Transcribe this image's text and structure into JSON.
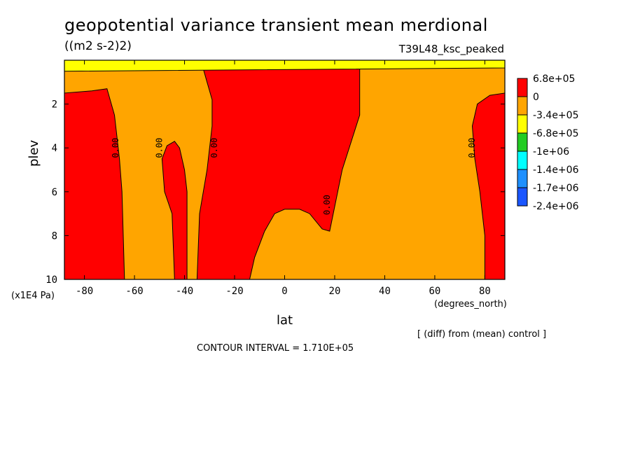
{
  "chart_data": {
    "type": "heatmap",
    "title": "geopotential variance transient mean merdional",
    "units": "((m2 s-2)2)",
    "experiment": "T39L48_ksc_peaked",
    "xlabel": "lat",
    "xunit": "(degrees_north)",
    "ylabel": "plev",
    "yunit": "(x1E4 Pa)",
    "xlim": [
      -88,
      88
    ],
    "ylim": [
      0,
      10
    ],
    "y_inverted": true,
    "xticks": [
      "-80",
      "-60",
      "-40",
      "-20",
      "0",
      "20",
      "40",
      "60",
      "80"
    ],
    "xtick_values": [
      -80,
      -60,
      -40,
      -20,
      0,
      20,
      40,
      60,
      80
    ],
    "yticks": [
      "2",
      "4",
      "6",
      "8",
      "10"
    ],
    "ytick_values": [
      2,
      4,
      6,
      8,
      10
    ],
    "contour_label": "0.00",
    "contour_interval": "CONTOUR INTERVAL = 1.710E+05",
    "note": "[ (diff) from (mean) control ]",
    "legend": {
      "placement": "right",
      "levels": [
        {
          "label": "6.8e+05",
          "color": "#ff0000"
        },
        {
          "label": "0",
          "color": "#ffa500"
        },
        {
          "label": "-3.4e+05",
          "color": "#ffff00"
        },
        {
          "label": "-6.8e+05",
          "color": "#22cc22"
        },
        {
          "label": "-1e+06",
          "color": "#00ffff"
        },
        {
          "label": "-1.4e+06",
          "color": "#1e90ff"
        },
        {
          "label": "-1.7e+06",
          "color": "#1a56ff"
        },
        {
          "label": "-2.4e+06",
          "color": "#ffffff"
        }
      ]
    },
    "regions": [
      {
        "name": "red-south-edge",
        "level": "6.8e+05",
        "points": [
          [
            -88,
            10
          ],
          [
            -88,
            1.5
          ],
          [
            -77,
            1.4
          ],
          [
            -71,
            1.3
          ],
          [
            -68,
            2.5
          ],
          [
            -66,
            4.5
          ],
          [
            -65,
            6
          ],
          [
            -64,
            10
          ]
        ]
      },
      {
        "name": "red-south-mid",
        "level": "6.8e+05",
        "points": [
          [
            -39,
            10
          ],
          [
            -39,
            6
          ],
          [
            -40,
            5
          ],
          [
            -42,
            4
          ],
          [
            -44,
            3.7
          ],
          [
            -47,
            3.9
          ],
          [
            -49,
            4.5
          ],
          [
            -48,
            6
          ],
          [
            -45,
            7
          ],
          [
            -44,
            10
          ]
        ]
      },
      {
        "name": "red-central",
        "level": "6.8e+05",
        "points": [
          [
            -35,
            10
          ],
          [
            -34,
            7
          ],
          [
            -31,
            5
          ],
          [
            -29,
            3
          ],
          [
            -29,
            1.8
          ],
          [
            -31,
            1.0
          ],
          [
            -33,
            0.2
          ],
          [
            -20,
            0.1
          ],
          [
            0,
            0.05
          ],
          [
            20,
            0.08
          ],
          [
            30,
            0.15
          ],
          [
            30,
            2.5
          ],
          [
            23,
            5
          ],
          [
            18,
            7.8
          ],
          [
            15,
            7.7
          ],
          [
            10,
            7.0
          ],
          [
            6,
            6.8
          ],
          [
            0,
            6.8
          ],
          [
            -4,
            7.0
          ],
          [
            -8,
            7.8
          ],
          [
            -12,
            9.0
          ],
          [
            -14,
            10
          ]
        ]
      },
      {
        "name": "red-north-edge",
        "level": "6.8e+05",
        "points": [
          [
            88,
            10
          ],
          [
            88,
            1.5
          ],
          [
            82,
            1.6
          ],
          [
            77,
            2
          ],
          [
            75,
            3
          ],
          [
            76,
            4.5
          ],
          [
            78,
            6
          ],
          [
            80,
            8
          ],
          [
            80,
            10
          ]
        ]
      },
      {
        "name": "yellow-top",
        "level": "-3.4e+05",
        "points": [
          [
            -88,
            0.0
          ],
          [
            88,
            0.0
          ],
          [
            88,
            0.35
          ],
          [
            -88,
            0.5
          ]
        ]
      }
    ],
    "contour_label_positions": [
      [
        -66.5,
        4.0
      ],
      [
        -49,
        4.0
      ],
      [
        -27,
        4.0
      ],
      [
        18,
        6.6
      ],
      [
        76,
        4.0
      ]
    ]
  }
}
